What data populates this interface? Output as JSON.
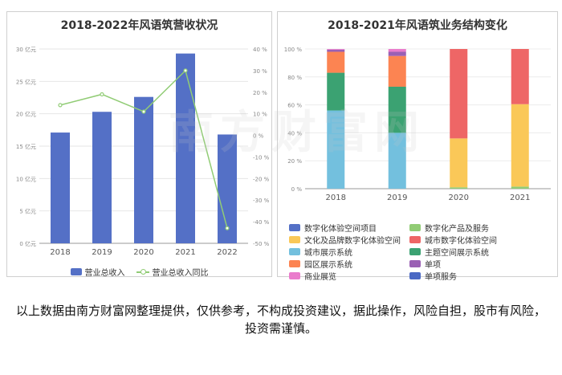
{
  "chart_data": [
    {
      "type": "bar",
      "title": "2018-2022年风语筑营收状况",
      "categories": [
        "2018",
        "2019",
        "2020",
        "2021",
        "2022"
      ],
      "series": [
        {
          "name": "营业总收入",
          "type": "bar",
          "axis": "left",
          "color": "#5470c6",
          "values": [
            17.1,
            20.3,
            22.6,
            29.3,
            16.8
          ]
        },
        {
          "name": "营业总收入同比",
          "type": "line",
          "axis": "right",
          "color": "#91cc75",
          "values": [
            14,
            19,
            11,
            30,
            -43
          ]
        }
      ],
      "yleft": {
        "ticks": [
          "30 亿元",
          "25 亿元",
          "20 亿元",
          "15 亿元",
          "10 亿元",
          "5 亿元",
          "0 亿元"
        ],
        "range": [
          0,
          30
        ]
      },
      "yright": {
        "ticks": [
          "40 %",
          "30 %",
          "20 %",
          "10 %",
          "0 %",
          "-10 %",
          "-20 %",
          "-30 %",
          "-40 %",
          "-50 %"
        ],
        "range": [
          -50,
          40
        ]
      },
      "legend": "bottom"
    },
    {
      "type": "bar",
      "stacked": true,
      "title": "2018-2021年风语筑业务结构变化",
      "categories": [
        "2018",
        "2019",
        "2020",
        "2021"
      ],
      "yticks": [
        "100 %",
        "80 %",
        "60 %",
        "40 %",
        "20 %",
        "0 %"
      ],
      "series": [
        {
          "name": "数字化体验空间项目",
          "color": "#5470c6",
          "values": [
            0,
            0,
            0,
            0
          ]
        },
        {
          "name": "数字化产品及服务",
          "color": "#91cc75",
          "values": [
            0,
            0,
            1,
            1.5
          ]
        },
        {
          "name": "文化及品牌数字化体验空间",
          "color": "#fac858",
          "values": [
            0,
            0,
            35,
            59
          ]
        },
        {
          "name": "城市数字化体验空间",
          "color": "#ee6666",
          "values": [
            0,
            0,
            64,
            39.5
          ]
        },
        {
          "name": "城市展示系统",
          "color": "#73c0de",
          "values": [
            56,
            40,
            0,
            0
          ]
        },
        {
          "name": "主题空间展示系统",
          "color": "#3ba272",
          "values": [
            27,
            33,
            0,
            0
          ]
        },
        {
          "name": "园区展示系统",
          "color": "#fc8452",
          "values": [
            15,
            22,
            0,
            0
          ]
        },
        {
          "name": "单项",
          "color": "#9a60b4",
          "values": [
            1.5,
            3,
            0,
            0
          ]
        },
        {
          "name": "商业展览",
          "color": "#ea7ccc",
          "values": [
            0.5,
            2,
            0,
            0
          ]
        },
        {
          "name": "单项服务",
          "color": "#4a68c4",
          "values": [
            0,
            0,
            0,
            0
          ]
        }
      ],
      "legend": "bottom"
    }
  ],
  "disclaimer": "以上数据由南方财富网整理提供，仅供参考，不构成投资建议，据此操作，风险自担，股市有风险，投资需谨慎。",
  "watermark": "南方财富网"
}
